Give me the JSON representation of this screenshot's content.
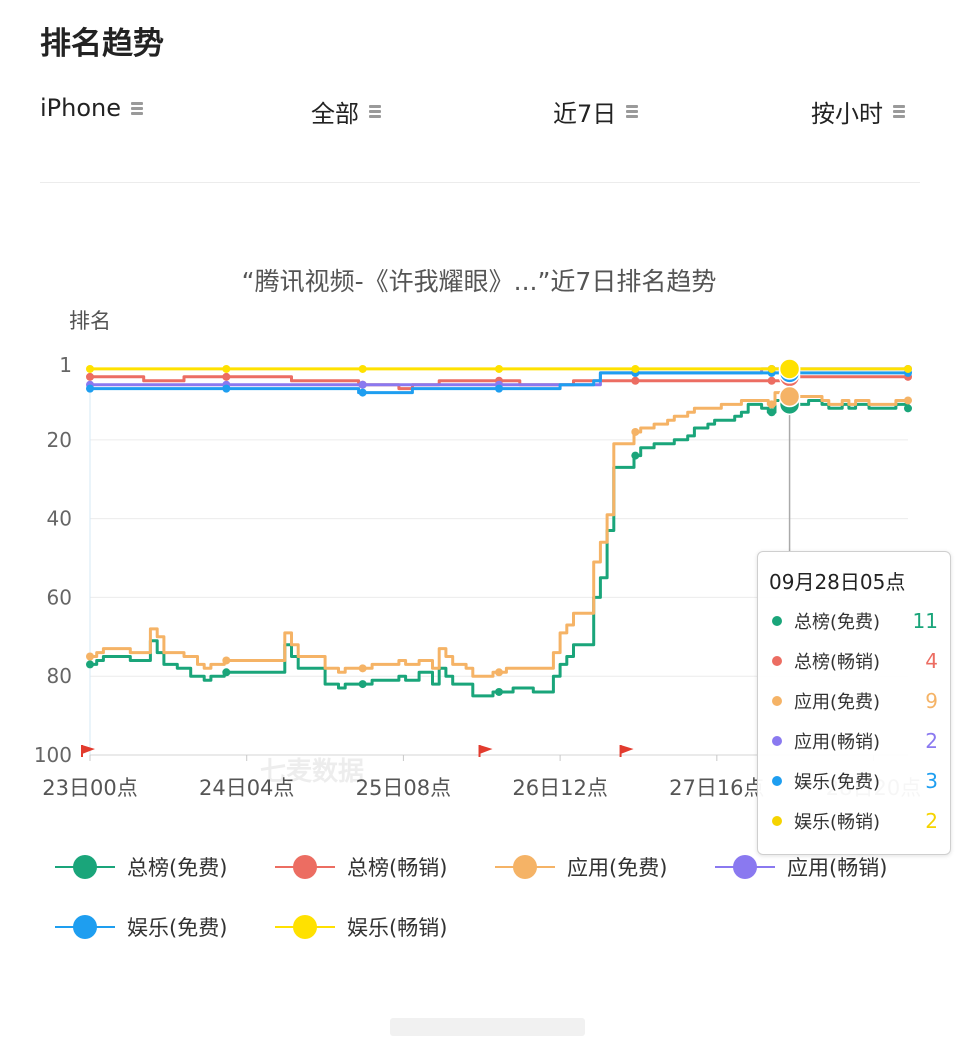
{
  "header": {
    "title": "排名趋势"
  },
  "filters": [
    {
      "label": "iPhone",
      "icon": "menu-icon"
    },
    {
      "label": "全部",
      "icon": "menu-icon"
    },
    {
      "label": "近7日",
      "icon": "menu-icon"
    },
    {
      "label": "按小时",
      "icon": "menu-icon"
    }
  ],
  "watermark": "七麦数据",
  "tooltip": {
    "title": "09月28日05点",
    "rows": [
      {
        "label": "总榜(免费)",
        "value": "11"
      },
      {
        "label": "总榜(畅销)",
        "value": "4"
      },
      {
        "label": "应用(免费)",
        "value": "9"
      },
      {
        "label": "应用(畅销)",
        "value": "2"
      },
      {
        "label": "娱乐(免费)",
        "value": "3"
      },
      {
        "label": "娱乐(畅销)",
        "value": "2"
      }
    ]
  },
  "chart_data": {
    "type": "line",
    "title": "“腾讯视频-《许我耀眼》...”近7日排名趋势",
    "ylabel": "排名",
    "y_inverted": true,
    "ylim": [
      1,
      100
    ],
    "yticks": [
      1,
      20,
      40,
      60,
      80,
      100
    ],
    "xlim": [
      0,
      6.09
    ],
    "xticks": [
      {
        "x": 0,
        "label": "23日00点"
      },
      {
        "x": 1.1667,
        "label": "24日04点"
      },
      {
        "x": 2.3333,
        "label": "25日08点"
      },
      {
        "x": 3.5,
        "label": "26日12点"
      },
      {
        "x": 4.6667,
        "label": "27日16点"
      },
      {
        "x": 5.8333,
        "label": "28日20点"
      }
    ],
    "grid": true,
    "legend": "bottom",
    "highlight_x": 5.2083,
    "flag_markers_x": [
      0,
      2.9,
      3.95
    ],
    "series": [
      {
        "name": "总榜(免费)",
        "color": "#1aa57a",
        "x": [
          0,
          0.05,
          0.1,
          0.2,
          0.3,
          0.4,
          0.45,
          0.5,
          0.55,
          0.6,
          0.65,
          0.75,
          0.85,
          0.9,
          1.0,
          1.1,
          1.15,
          1.25,
          1.35,
          1.45,
          1.5,
          1.55,
          1.6,
          1.65,
          1.75,
          1.85,
          1.9,
          2.0,
          2.1,
          2.2,
          2.3,
          2.35,
          2.45,
          2.5,
          2.55,
          2.6,
          2.65,
          2.7,
          2.8,
          2.85,
          2.95,
          3.0,
          3.1,
          3.15,
          3.2,
          3.3,
          3.35,
          3.45,
          3.5,
          3.55,
          3.6,
          3.7,
          3.75,
          3.8,
          3.85,
          3.9,
          4.0,
          4.05,
          4.1,
          4.2,
          4.3,
          4.35,
          4.45,
          4.5,
          4.6,
          4.65,
          4.7,
          4.8,
          4.85,
          4.9,
          5.0,
          5.05,
          5.1,
          5.2,
          5.3,
          5.35,
          5.45,
          5.5,
          5.6,
          5.65,
          5.7,
          5.8,
          5.9,
          6.0,
          6.09
        ],
        "y": [
          77,
          76,
          75,
          75,
          76,
          76,
          71,
          74,
          77,
          77,
          78,
          80,
          81,
          80,
          79,
          79,
          79,
          79,
          79,
          72,
          75,
          78,
          78,
          78,
          82,
          83,
          82,
          82,
          81,
          81,
          80,
          81,
          79,
          79,
          82,
          78,
          80,
          82,
          82,
          85,
          85,
          84,
          84,
          83,
          83,
          84,
          84,
          80,
          77,
          75,
          72,
          72,
          60,
          55,
          43,
          27,
          27,
          24,
          22,
          21,
          21,
          20,
          19,
          17,
          16,
          15,
          15,
          14,
          13,
          11,
          12,
          13,
          10,
          11,
          11,
          10,
          11,
          12,
          11,
          12,
          11,
          12,
          12,
          11,
          12
        ]
      },
      {
        "name": "总榜(畅销)",
        "color": "#ec6d62",
        "x": [
          0,
          0.2,
          0.4,
          0.5,
          0.7,
          1.0,
          1.2,
          1.5,
          1.7,
          1.9,
          2.0,
          2.1,
          2.2,
          2.3,
          2.4,
          2.5,
          2.6,
          2.7,
          3.0,
          3.2,
          3.4,
          3.5,
          3.6,
          3.8,
          4.0,
          4.2,
          4.4,
          4.6,
          4.8,
          5.0,
          5.2,
          5.4,
          5.6,
          5.8,
          6.0,
          6.09
        ],
        "y": [
          4,
          4,
          5,
          5,
          4,
          4,
          4,
          5,
          5,
          5,
          6,
          6,
          6,
          7,
          6,
          6,
          5,
          5,
          5,
          6,
          6,
          6,
          5,
          5,
          5,
          5,
          5,
          5,
          5,
          5,
          4,
          4,
          4,
          4,
          4,
          4
        ]
      },
      {
        "name": "应用(免费)",
        "color": "#f5b366",
        "x": [
          0,
          0.05,
          0.1,
          0.2,
          0.3,
          0.4,
          0.45,
          0.5,
          0.55,
          0.6,
          0.7,
          0.8,
          0.85,
          0.9,
          1.0,
          1.1,
          1.15,
          1.25,
          1.35,
          1.45,
          1.5,
          1.55,
          1.6,
          1.65,
          1.75,
          1.85,
          1.9,
          2.0,
          2.1,
          2.2,
          2.3,
          2.35,
          2.45,
          2.5,
          2.55,
          2.6,
          2.65,
          2.7,
          2.8,
          2.85,
          2.95,
          3.0,
          3.1,
          3.15,
          3.2,
          3.3,
          3.35,
          3.45,
          3.5,
          3.55,
          3.6,
          3.7,
          3.75,
          3.8,
          3.85,
          3.9,
          4.0,
          4.05,
          4.1,
          4.2,
          4.3,
          4.35,
          4.45,
          4.5,
          4.6,
          4.65,
          4.7,
          4.8,
          4.85,
          4.9,
          5.0,
          5.05,
          5.1,
          5.2,
          5.3,
          5.35,
          5.45,
          5.5,
          5.6,
          5.65,
          5.7,
          5.8,
          5.9,
          6.0,
          6.09
        ],
        "y": [
          75,
          74,
          73,
          73,
          74,
          74,
          68,
          70,
          74,
          74,
          75,
          77,
          78,
          77,
          76,
          76,
          76,
          76,
          76,
          69,
          72,
          75,
          75,
          75,
          78,
          79,
          78,
          78,
          77,
          77,
          76,
          77,
          76,
          76,
          78,
          73,
          75,
          77,
          78,
          80,
          80,
          79,
          78,
          78,
          78,
          78,
          78,
          74,
          69,
          67,
          64,
          64,
          51,
          46,
          39,
          21,
          21,
          18,
          17,
          16,
          15,
          14,
          13,
          12,
          12,
          12,
          11,
          11,
          10,
          10,
          10,
          11,
          8,
          9,
          9,
          9,
          10,
          11,
          10,
          11,
          10,
          11,
          11,
          10,
          10
        ]
      },
      {
        "name": "应用(畅销)",
        "color": "#8a79f0",
        "x": [
          0,
          0.5,
          1.0,
          1.5,
          2.0,
          2.5,
          3.0,
          3.3,
          3.5,
          3.7,
          3.8,
          4.0,
          4.5,
          5.0,
          5.5,
          6.0,
          6.09
        ],
        "y": [
          6,
          6,
          6,
          6,
          6,
          6,
          6,
          6,
          6,
          6,
          3,
          3,
          3,
          2,
          2,
          2,
          2
        ]
      },
      {
        "name": "娱乐(免费)",
        "color": "#1e9ef0",
        "x": [
          0,
          0.5,
          1.0,
          1.3,
          1.6,
          1.9,
          2.0,
          2.3,
          2.4,
          2.5,
          2.7,
          3.0,
          3.3,
          3.5,
          3.7,
          3.75,
          3.8,
          4.0,
          4.5,
          5.0,
          5.2,
          5.5,
          6.0,
          6.09
        ],
        "y": [
          7,
          7,
          7,
          7,
          7,
          7,
          8,
          8,
          7,
          7,
          7,
          7,
          7,
          6,
          6,
          5,
          3,
          3,
          3,
          3,
          3,
          3,
          3,
          3
        ]
      },
      {
        "name": "娱乐(畅销)",
        "color": "#ffe100",
        "x": [
          0,
          1.0,
          2.0,
          3.0,
          4.0,
          5.0,
          5.2083,
          6.0,
          6.09
        ],
        "y": [
          2,
          2,
          2,
          2,
          2,
          2,
          2,
          2,
          2
        ]
      }
    ]
  }
}
